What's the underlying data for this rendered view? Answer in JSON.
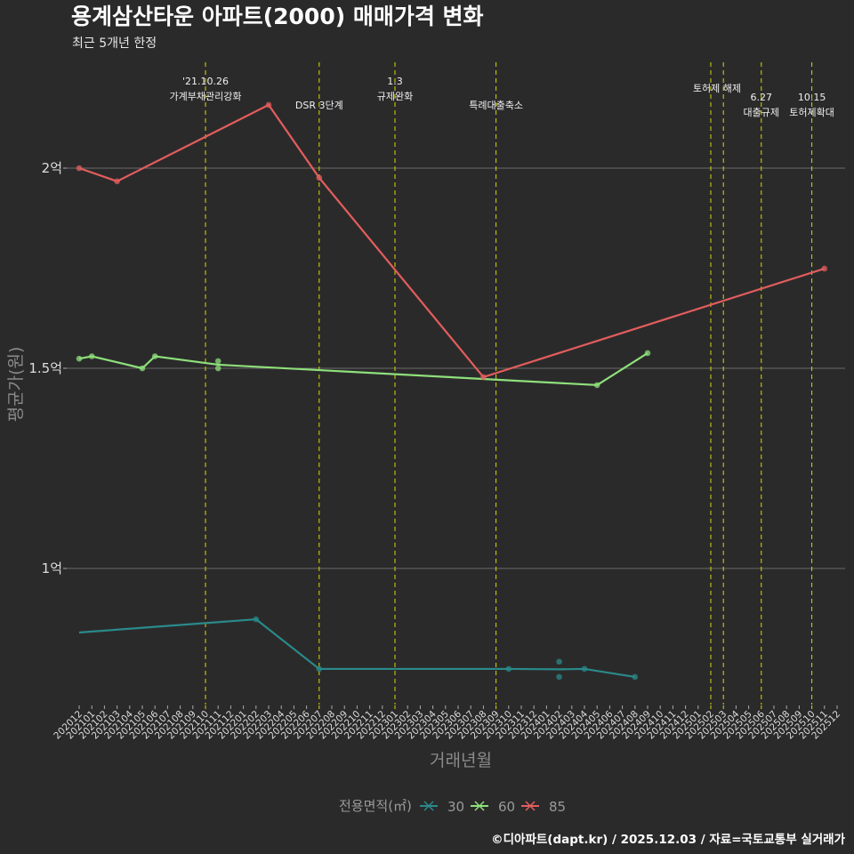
{
  "title": "용계삼산타운 아파트(2000) 매매가격 변화",
  "subtitle": "최근 5개년 한정",
  "caption": "©디아파트(dapt.kr) / 2025.12.03 / 자료=국토교통부 실거래가",
  "chart_data": {
    "type": "line",
    "title": "용계삼산타운 아파트(2000) 매매가격 변화",
    "xlabel": "거래년월",
    "ylabel": "평균가(원)",
    "categories": [
      "202012",
      "202101",
      "202102",
      "202103",
      "202104",
      "202105",
      "202106",
      "202107",
      "202108",
      "202109",
      "202110",
      "202111",
      "202112",
      "202201",
      "202202",
      "202203",
      "202204",
      "202205",
      "202206",
      "202207",
      "202208",
      "202209",
      "202210",
      "202211",
      "202212",
      "202301",
      "202302",
      "202303",
      "202304",
      "202305",
      "202306",
      "202307",
      "202308",
      "202309",
      "202310",
      "202311",
      "202312",
      "202401",
      "202402",
      "202403",
      "202404",
      "202405",
      "202406",
      "202407",
      "202408",
      "202409",
      "202410",
      "202411",
      "202412",
      "202501",
      "202502",
      "202503",
      "202504",
      "202505",
      "202506",
      "202507",
      "202508",
      "202509",
      "202510",
      "202511",
      "202512"
    ],
    "ylim": [
      0.66,
      2.31
    ],
    "yticks": [
      {
        "value": 1.0,
        "label": "1억"
      },
      {
        "value": 1.5,
        "label": "1.5억"
      },
      {
        "value": 2.0,
        "label": "2억"
      }
    ],
    "grid": true,
    "legend": {
      "title": "전용면적(㎡)",
      "placement": "bottom"
    },
    "series": [
      {
        "name": "30",
        "color": "#2a8a8a",
        "line": [
          [
            "202012",
            0.84
          ],
          [
            "202202",
            0.873
          ],
          [
            "202207",
            0.749
          ],
          [
            "202310",
            0.749
          ],
          [
            "202402",
            0.748
          ],
          [
            "202404",
            0.749
          ],
          [
            "202408",
            0.729
          ]
        ],
        "points": [
          [
            "202202",
            0.873
          ],
          [
            "202207",
            0.749
          ],
          [
            "202310",
            0.749
          ],
          [
            "202402",
            0.767
          ],
          [
            "202402",
            0.729
          ],
          [
            "202404",
            0.749
          ],
          [
            "202408",
            0.729
          ]
        ]
      },
      {
        "name": "60",
        "color": "#8ee07a",
        "line": [
          [
            "202012",
            1.524
          ],
          [
            "202101",
            1.53
          ],
          [
            "202105",
            1.5
          ],
          [
            "202106",
            1.53
          ],
          [
            "202111",
            1.509
          ],
          [
            "202405",
            1.458
          ],
          [
            "202409",
            1.538
          ]
        ],
        "points": [
          [
            "202012",
            1.524
          ],
          [
            "202101",
            1.53
          ],
          [
            "202105",
            1.5
          ],
          [
            "202106",
            1.53
          ],
          [
            "202111",
            1.518
          ],
          [
            "202111",
            1.5
          ],
          [
            "202405",
            1.458
          ],
          [
            "202409",
            1.538
          ]
        ]
      },
      {
        "name": "85",
        "color": "#e35d5d",
        "line": [
          [
            "202012",
            2.0
          ],
          [
            "202103",
            1.967
          ],
          [
            "202203",
            2.158
          ],
          [
            "202207",
            1.976
          ],
          [
            "202308",
            1.478
          ],
          [
            "202511",
            1.749
          ]
        ],
        "points": [
          [
            "202012",
            2.0
          ],
          [
            "202103",
            1.967
          ],
          [
            "202203",
            2.158
          ],
          [
            "202207",
            1.976
          ],
          [
            "202308",
            1.478
          ],
          [
            "202511",
            1.749
          ]
        ]
      }
    ],
    "annotations": [
      {
        "month": "202110",
        "lines": [
          "'21.10.26",
          "가계부채관리강화"
        ],
        "row": 0
      },
      {
        "month": "202207",
        "lines": [
          "DSR 3단계"
        ],
        "row": 2
      },
      {
        "month": "202301",
        "lines": [
          "1.3",
          "규제완화"
        ],
        "row": 0
      },
      {
        "month": "202309",
        "lines": [
          "특례대출축소"
        ],
        "row": 2
      },
      {
        "month": "202502",
        "lines": [
          "토허제 해제"
        ],
        "row": 1,
        "offset": 7
      },
      {
        "month": "202503",
        "lines": [],
        "row": 1
      },
      {
        "month": "202506",
        "lines": [
          "6.27",
          "대출규제"
        ],
        "row": 1.9
      },
      {
        "month": "202510",
        "lines": [
          "10.15",
          "토허제확대"
        ],
        "row": 1.9
      }
    ]
  }
}
